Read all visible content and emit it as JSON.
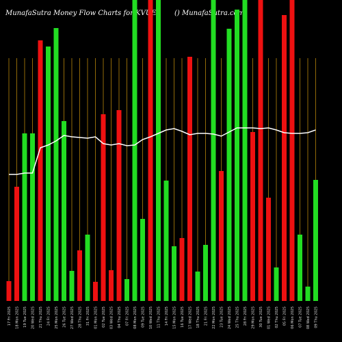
{
  "chart_data": {
    "type": "bar",
    "title": "MunafaSutra  Money Flow  Charts for KVUE",
    "subtitle": "() MunafaSutra.com",
    "categories": [
      "17 Fri 2025",
      "18 Mon 2025",
      "19 Tue 2025",
      "20 Wed 2025",
      "21 Thu 2025",
      "24 Fri 2025",
      "25 Mon 2025",
      "26 Tue 2025",
      "27 Wed 2025",
      "28 Thu 2025",
      "31 Fri 2025",
      "01 Mon 2025",
      "02 Tue 2025",
      "03 Wed 2025",
      "04 Thu 2025",
      "07 Fri 2025",
      "08 Mon 2025",
      "09 Tue 2025",
      "10 Wed 2025",
      "11 Thu 2025",
      "14 Fri 2025",
      "15 Mon 2025",
      "16 Tue 2025",
      "17 Wed 2025",
      "18 Thu 2025",
      "21 Fri 2025",
      "22 Mon 2025",
      "23 Tue 2025",
      "24 Wed 2025",
      "25 Thu 2025",
      "28 Fri 2025",
      "29 Mon 2025",
      "30 Tue 2025",
      "01 Wed 2025",
      "02 Thu 2025",
      "05 Fri 2025",
      "06 Mon 2025",
      "07 Tue 2025",
      "08 Wed 2025",
      "09 Thu 2025"
    ],
    "values": [
      29,
      167,
      245,
      245,
      381,
      372,
      399,
      263,
      44,
      74,
      97,
      28,
      273,
      45,
      279,
      32,
      460,
      120,
      460,
      460,
      176,
      80,
      92,
      357,
      43,
      82,
      460,
      190,
      398,
      426,
      460,
      247,
      460,
      151,
      49,
      418,
      460,
      97,
      21,
      177
    ],
    "colors": [
      "#ee1111",
      "#ee1111",
      "#22dd22",
      "#22dd22",
      "#ee1111",
      "#22dd22",
      "#22dd22",
      "#22dd22",
      "#22dd22",
      "#ee1111",
      "#22dd22",
      "#ee1111",
      "#ee1111",
      "#ee1111",
      "#ee1111",
      "#22dd22",
      "#22dd22",
      "#22dd22",
      "#ee1111",
      "#22dd22",
      "#22dd22",
      "#22dd22",
      "#ee1111",
      "#ee1111",
      "#22dd22",
      "#22dd22",
      "#22dd22",
      "#ee1111",
      "#22dd22",
      "#22dd22",
      "#22dd22",
      "#ee1111",
      "#ee1111",
      "#ee1111",
      "#22dd22",
      "#ee1111",
      "#ee1111",
      "#22dd22",
      "#22dd22",
      "#22dd22"
    ],
    "line": {
      "color": "#ffffff",
      "values": [
        185,
        185,
        187,
        187,
        224,
        228,
        234,
        242,
        240,
        239,
        238,
        240,
        230,
        228,
        230,
        227,
        228,
        236,
        240,
        245,
        250,
        252,
        248,
        243,
        245,
        245,
        244,
        241,
        247,
        253,
        253,
        253,
        252,
        253,
        250,
        246,
        245,
        245,
        246,
        250
      ]
    },
    "ylim": [
      0,
      440
    ]
  }
}
